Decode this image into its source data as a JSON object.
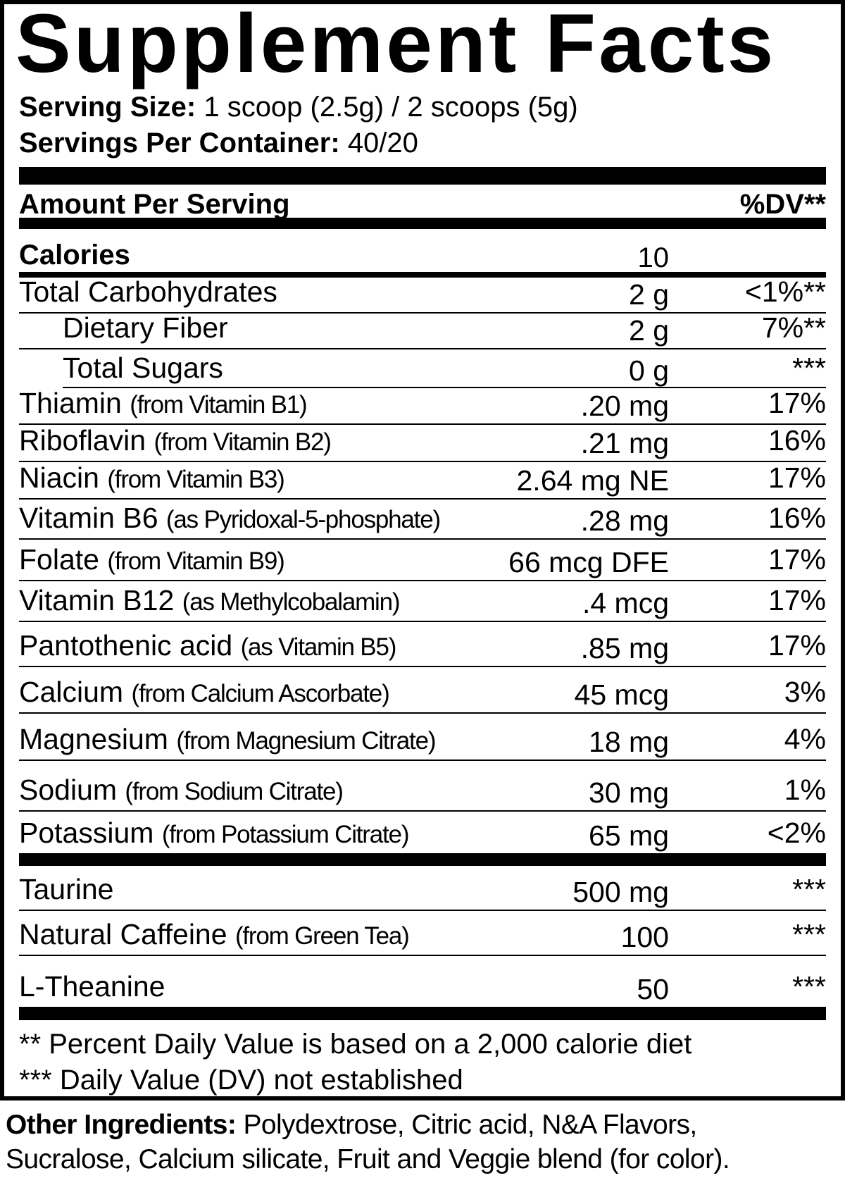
{
  "title": "Supplement Facts",
  "serving_size": {
    "label": "Serving Size:",
    "value": "1 scoop (2.5g) / 2 scoops (5g)"
  },
  "servings_per_container": {
    "label": "Servings Per Container:",
    "value": "40/20"
  },
  "header": {
    "amount_per_serving": "Amount Per Serving",
    "dv": "%DV**"
  },
  "calories": {
    "label": "Calories",
    "value": "10"
  },
  "rows": [
    {
      "name": "Total Carbohydrates",
      "source": "",
      "amount": "2 g",
      "dv": "<1%**"
    },
    {
      "name": "Dietary Fiber",
      "source": "",
      "amount": "2 g",
      "dv": "7%**"
    },
    {
      "name": "Total Sugars",
      "source": "",
      "amount": "0 g",
      "dv": "***"
    },
    {
      "name": "Thiamin",
      "source": "(from Vitamin B1)",
      "amount": ".20 mg",
      "dv": "17%"
    },
    {
      "name": "Riboflavin",
      "source": "(from Vitamin B2)",
      "amount": ".21 mg",
      "dv": "16%"
    },
    {
      "name": "Niacin",
      "source": "(from Vitamin B3)",
      "amount": "2.64 mg NE",
      "dv": "17%"
    },
    {
      "name": "Vitamin B6",
      "source": "(as Pyridoxal-5-phosphate)",
      "amount": ".28 mg",
      "dv": "16%"
    },
    {
      "name": "Folate",
      "source": "(from Vitamin B9)",
      "amount": "66 mcg DFE",
      "dv": "17%"
    },
    {
      "name": "Vitamin B12",
      "source": "(as Methylcobalamin)",
      "amount": ".4 mcg",
      "dv": "17%"
    },
    {
      "name": "Pantothenic acid",
      "source": "(as Vitamin B5)",
      "amount": ".85 mg",
      "dv": "17%"
    },
    {
      "name": "Calcium",
      "source": "(from Calcium Ascorbate)",
      "amount": "45 mcg",
      "dv": "3%"
    },
    {
      "name": "Magnesium",
      "source": "(from Magnesium Citrate)",
      "amount": "18 mg",
      "dv": "4%"
    },
    {
      "name": "Sodium",
      "source": "(from Sodium Citrate)",
      "amount": "30 mg",
      "dv": "1%"
    },
    {
      "name": "Potassium",
      "source": "(from Potassium Citrate)",
      "amount": "65 mg",
      "dv": "<2%"
    }
  ],
  "other_rows": [
    {
      "name": "Taurine",
      "source": "",
      "amount": "500 mg",
      "dv": "***"
    },
    {
      "name": "Natural Caffeine",
      "source": "(from Green Tea)",
      "amount": "100",
      "dv": "***"
    },
    {
      "name": "L-Theanine",
      "source": "",
      "amount": "50",
      "dv": "***"
    }
  ],
  "footnotes": [
    "** Percent Daily Value is based on a 2,000 calorie diet",
    "*** Daily Value (DV) not established"
  ],
  "other_ingredients": {
    "label": "Other Ingredients:",
    "line1": "Polydextrose, Citric acid, N&A Flavors,",
    "line2": "Sucralose, Calcium silicate, Fruit and Veggie blend (for color)."
  }
}
